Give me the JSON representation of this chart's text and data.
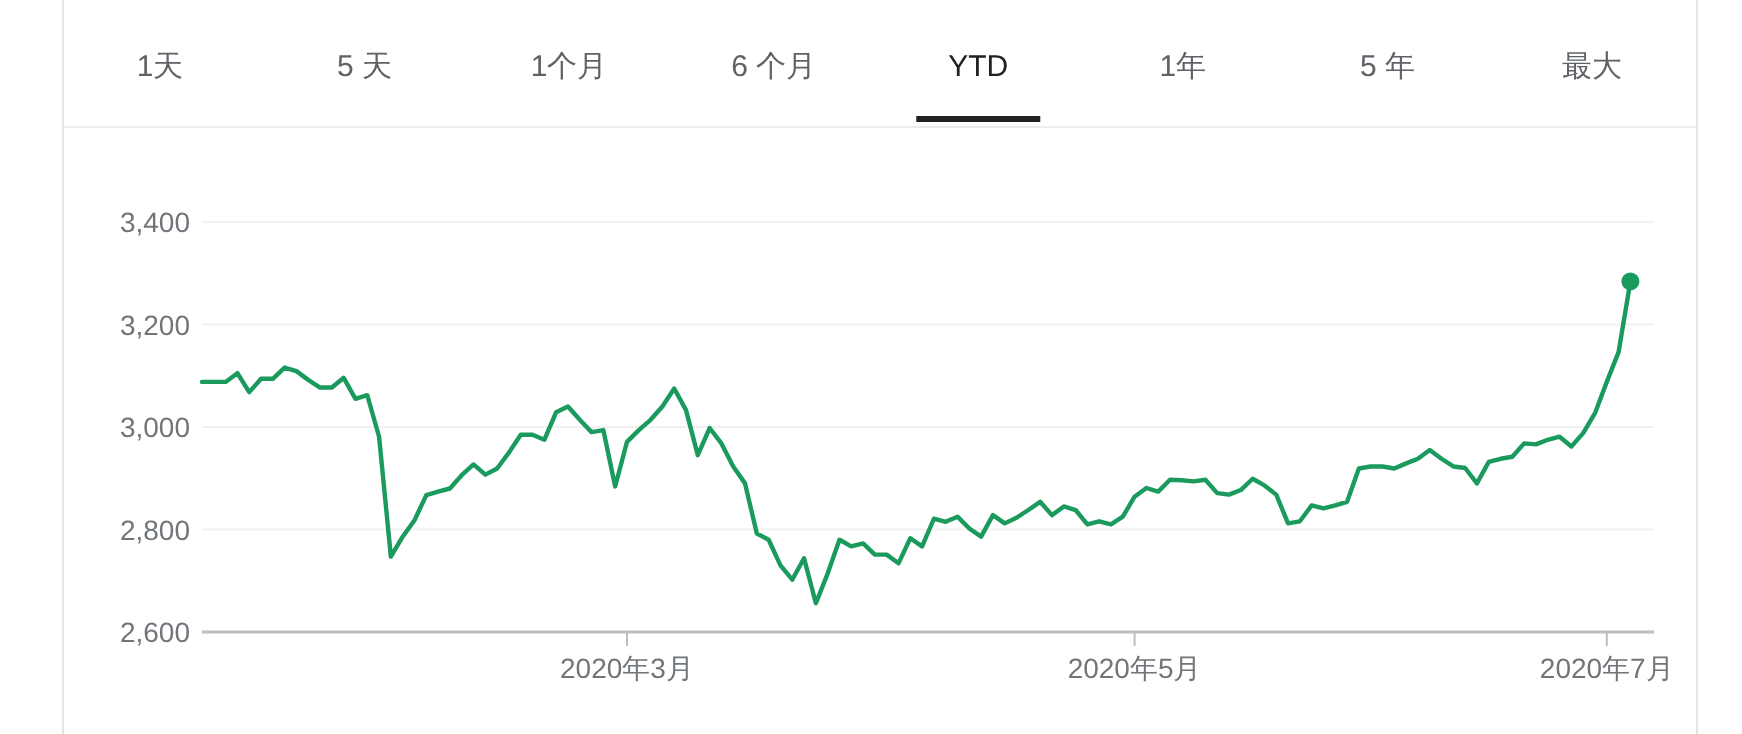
{
  "chart_data": {
    "type": "line",
    "annotations": [
      "1天",
      "5 天",
      "1个月",
      "6 个月",
      "YTD",
      "1年",
      "5 年",
      "最大"
    ],
    "categories": [
      null,
      null,
      null,
      null,
      null,
      null,
      null,
      null,
      null,
      null,
      null,
      null,
      null,
      null,
      null,
      null,
      null,
      null,
      null,
      null,
      null,
      null,
      null,
      null,
      null,
      null,
      null,
      null,
      null,
      null,
      null,
      null,
      null,
      null,
      null,
      null,
      "2020年3月",
      null,
      null,
      null,
      null,
      null,
      null,
      null,
      null,
      null,
      null,
      null,
      null,
      null,
      null,
      null,
      null,
      null,
      null,
      null,
      null,
      null,
      null,
      null,
      null,
      null,
      null,
      null,
      null,
      null,
      null,
      null,
      null,
      null,
      null,
      null,
      null,
      null,
      null,
      null,
      null,
      null,
      null,
      "2020年5月",
      null,
      null,
      null,
      null,
      null,
      null,
      null,
      null,
      null,
      null,
      null,
      null,
      null,
      null,
      null,
      null,
      null,
      null,
      null,
      null,
      null,
      null,
      null,
      null,
      null,
      null,
      null,
      null,
      null,
      null,
      null,
      null,
      null,
      null,
      null,
      null,
      null,
      null,
      null,
      "2020年7月",
      null,
      null
    ],
    "series": [
      {
        "color": "#1a9a5c",
        "values": [
          3088,
          3088,
          3088,
          3105,
          3068,
          3094,
          3094,
          3116,
          3109,
          3092,
          3077,
          3077,
          3096,
          3055,
          3062,
          2981,
          2747,
          2786,
          2818,
          2867,
          2874,
          2880,
          2906,
          2927,
          2907,
          2919,
          2950,
          2985,
          2985,
          2975,
          3029,
          3040,
          3014,
          2990,
          2994,
          2884,
          2971,
          2994,
          3014,
          3040,
          3075,
          3033,
          2945,
          2998,
          2968,
          2923,
          2890,
          2792,
          2780,
          2730,
          2702,
          2744,
          2656,
          2714,
          2780,
          2767,
          2773,
          2751,
          2751,
          2734,
          2783,
          2767,
          2821,
          2815,
          2825,
          2802,
          2786,
          2828,
          2812,
          2823,
          2838,
          2854,
          2828,
          2845,
          2838,
          2810,
          2816,
          2810,
          2825,
          2864,
          2881,
          2874,
          2897,
          2896,
          2894,
          2897,
          2871,
          2868,
          2877,
          2899,
          2886,
          2868,
          2812,
          2816,
          2847,
          2841,
          2847,
          2854,
          2919,
          2923,
          2923,
          2919,
          2929,
          2938,
          2955,
          2938,
          2923,
          2920,
          2890,
          2932,
          2938,
          2942,
          2968,
          2966,
          2975,
          2981,
          2962,
          2988,
          3027,
          3088,
          3146,
          3284
        ]
      },
      {
        "type": "scatter",
        "color": "#1a9a5c",
        "marker": "circle",
        "values": [
          null,
          null,
          null,
          null,
          null,
          null,
          null,
          null,
          null,
          null,
          null,
          null,
          null,
          null,
          null,
          null,
          null,
          null,
          null,
          null,
          null,
          null,
          null,
          null,
          null,
          null,
          null,
          null,
          null,
          null,
          null,
          null,
          null,
          null,
          null,
          null,
          null,
          null,
          null,
          null,
          null,
          null,
          null,
          null,
          null,
          null,
          null,
          null,
          null,
          null,
          null,
          null,
          null,
          null,
          null,
          null,
          null,
          null,
          null,
          null,
          null,
          null,
          null,
          null,
          null,
          null,
          null,
          null,
          null,
          null,
          null,
          null,
          null,
          null,
          null,
          null,
          null,
          null,
          null,
          null,
          null,
          null,
          null,
          null,
          null,
          null,
          null,
          null,
          null,
          null,
          null,
          null,
          null,
          null,
          null,
          null,
          null,
          null,
          null,
          null,
          null,
          null,
          null,
          null,
          null,
          null,
          null,
          null,
          null,
          null,
          null,
          null,
          null,
          null,
          null,
          null,
          null,
          null,
          null,
          null,
          null,
          3284
        ]
      }
    ],
    "ylim": [
      2600,
      3400
    ],
    "yticks": [
      {
        "value": 2600,
        "label": "2,600"
      },
      {
        "value": 2800,
        "label": "2,800"
      },
      {
        "value": 3000,
        "label": "3,000"
      },
      {
        "value": 3200,
        "label": "3,200"
      },
      {
        "value": 3400,
        "label": "3,400"
      }
    ],
    "grid": "y"
  }
}
